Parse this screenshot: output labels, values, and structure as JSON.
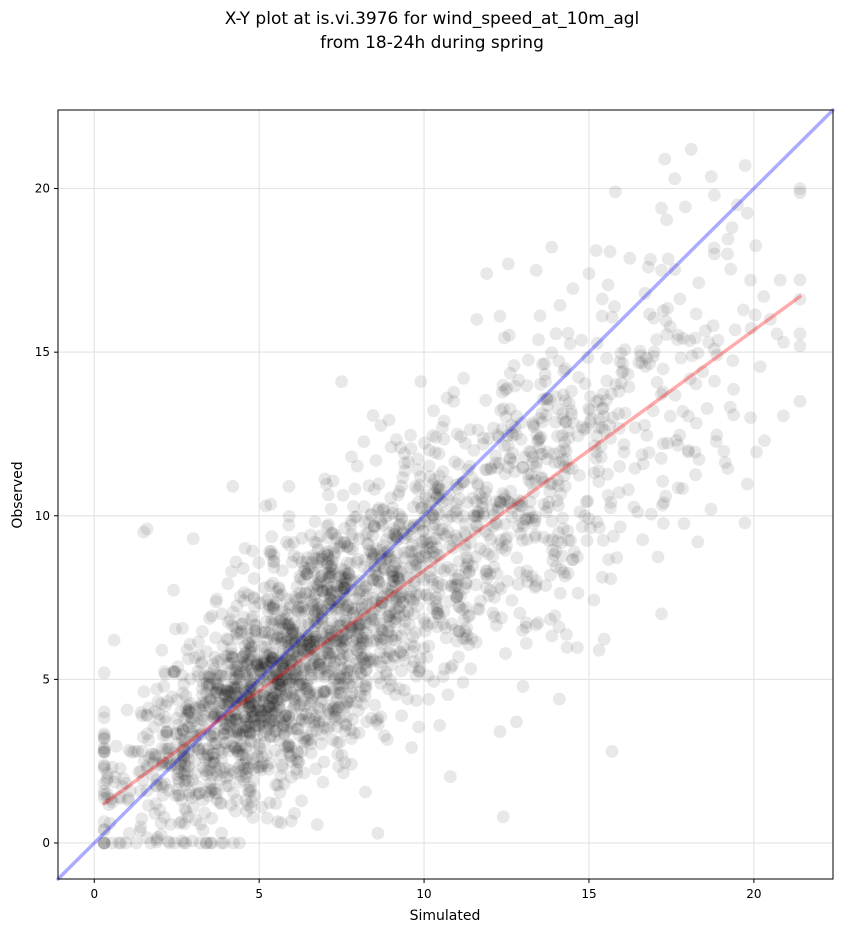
{
  "chart_data": {
    "type": "scatter",
    "title_lines": [
      "X-Y plot at is.vi.3976 for wind_speed_at_10m_agl",
      "from 18-24h during spring"
    ],
    "xlabel": "Simulated",
    "ylabel": "Observed",
    "xlim": [
      -1.1,
      22.4
    ],
    "ylim": [
      -1.1,
      22.4
    ],
    "xticks": [
      0,
      5,
      10,
      15,
      20
    ],
    "yticks": [
      0,
      5,
      10,
      15,
      20
    ],
    "grid": true,
    "point_color": "#000000",
    "point_alpha": 0.09,
    "identity_line": {
      "x": [
        -1.1,
        22.4
      ],
      "y": [
        -1.1,
        22.4
      ],
      "color": "#0000ff",
      "alpha": 0.33
    },
    "fit_line": {
      "x": [
        0.3,
        21.4
      ],
      "y": [
        1.2,
        16.7
      ],
      "color": "#ff0000",
      "alpha": 0.33
    },
    "point_count": 2600,
    "points_sample": [
      [
        17.3,
        20.9
      ],
      [
        18.1,
        21.2
      ],
      [
        17.6,
        20.3
      ],
      [
        17.2,
        19.4
      ],
      [
        15.8,
        19.9
      ],
      [
        18.8,
        19.8
      ],
      [
        19.5,
        19.5
      ],
      [
        19.2,
        18.0
      ],
      [
        18.8,
        18.0
      ],
      [
        16.8,
        17.6
      ],
      [
        17.2,
        17.5
      ],
      [
        13.4,
        17.5
      ],
      [
        15.0,
        17.4
      ],
      [
        11.9,
        17.4
      ],
      [
        16.7,
        16.8
      ],
      [
        20.3,
        16.7
      ],
      [
        19.9,
        17.2
      ],
      [
        20.8,
        17.2
      ],
      [
        21.4,
        13.5
      ],
      [
        20.9,
        15.3
      ],
      [
        20.5,
        16.0
      ],
      [
        19.9,
        13.0
      ],
      [
        18.7,
        10.2
      ],
      [
        18.3,
        9.2
      ],
      [
        17.2,
        7.0
      ],
      [
        15.7,
        2.8
      ],
      [
        14.1,
        4.4
      ],
      [
        13.1,
        6.1
      ],
      [
        12.3,
        3.4
      ],
      [
        12.4,
        0.8
      ],
      [
        12.8,
        3.7
      ],
      [
        8.6,
        0.3
      ],
      [
        4.4,
        0.0
      ],
      [
        1.9,
        0.1
      ],
      [
        0.6,
        6.2
      ],
      [
        0.3,
        5.2
      ],
      [
        1.5,
        9.5
      ],
      [
        1.6,
        9.6
      ],
      [
        4.2,
        10.9
      ],
      [
        7.5,
        14.1
      ],
      [
        11.2,
        14.2
      ],
      [
        12.3,
        16.1
      ],
      [
        11.6,
        16.0
      ],
      [
        10.7,
        13.6
      ],
      [
        9.9,
        14.1
      ],
      [
        9.0,
        12.1
      ],
      [
        7.8,
        11.8
      ],
      [
        5.9,
        10.9
      ],
      [
        5.2,
        10.3
      ],
      [
        3.0,
        9.3
      ]
    ]
  }
}
